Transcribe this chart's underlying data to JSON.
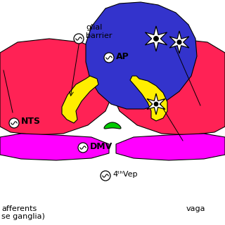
{
  "bg_color": "#ffffff",
  "ap_color": "#3333cc",
  "nts_color": "#ff2255",
  "dmv_color": "#ff00ff",
  "glial_color": "#ffee00",
  "fourth_vep_color": "#00cc00",
  "text_color": "#000000",
  "labels": {
    "AP": "AP",
    "NTS": "NTS",
    "DMV": "DMV",
    "fourth_vep": "Ⓞ 4ᵗʰVep",
    "glial_barrier": "glial\nbarrier",
    "afferents": "afferents\nse ganglia)",
    "vagal": "vaga"
  }
}
